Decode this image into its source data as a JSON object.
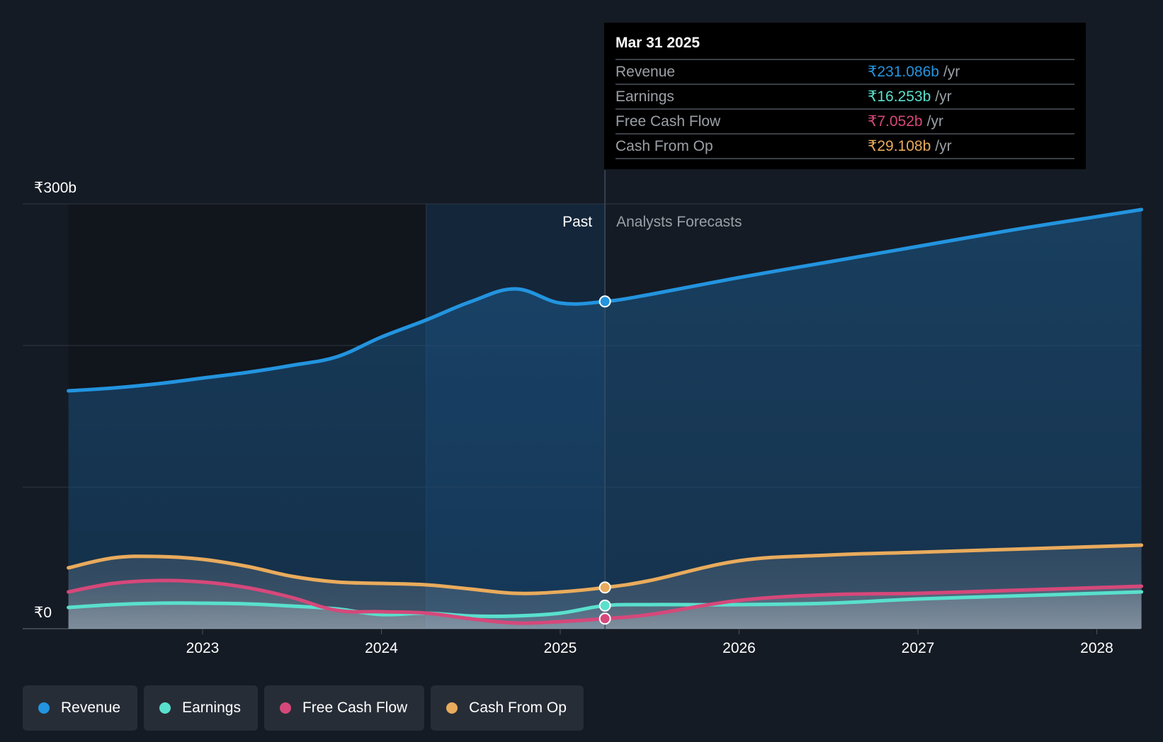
{
  "chart_data": {
    "type": "area",
    "y_axis": {
      "top_label": "₹300b",
      "bottom_label": "₹0",
      "ylim": [
        0,
        300
      ],
      "gridlines": [
        0,
        100,
        200,
        300
      ]
    },
    "x_axis": {
      "ticks": [
        "2023",
        "2024",
        "2025",
        "2026",
        "2027",
        "2028"
      ],
      "xlim": [
        2022.25,
        2028.25
      ]
    },
    "divider": {
      "x": 2025.25,
      "past_label": "Past",
      "forecast_label": "Analysts Forecasts",
      "highlight_start": 2024.25
    },
    "series": [
      {
        "name": "Revenue",
        "color": "#2394df",
        "points": [
          [
            2022.25,
            168
          ],
          [
            2022.5,
            170
          ],
          [
            2022.75,
            173
          ],
          [
            2023.0,
            177
          ],
          [
            2023.25,
            181
          ],
          [
            2023.5,
            186
          ],
          [
            2023.75,
            192
          ],
          [
            2024.0,
            206
          ],
          [
            2024.25,
            218
          ],
          [
            2024.5,
            231
          ],
          [
            2024.75,
            240
          ],
          [
            2025.0,
            230
          ],
          [
            2025.25,
            231.1
          ],
          [
            2025.5,
            236
          ],
          [
            2026.0,
            248
          ],
          [
            2026.5,
            259
          ],
          [
            2027.0,
            270
          ],
          [
            2027.5,
            281
          ],
          [
            2028.0,
            291
          ],
          [
            2028.25,
            296
          ]
        ]
      },
      {
        "name": "Earnings",
        "color": "#59e0cd",
        "points": [
          [
            2022.25,
            15
          ],
          [
            2022.5,
            17
          ],
          [
            2022.75,
            18
          ],
          [
            2023.0,
            18
          ],
          [
            2023.25,
            17.5
          ],
          [
            2023.5,
            16
          ],
          [
            2023.75,
            14
          ],
          [
            2024.0,
            10
          ],
          [
            2024.25,
            11
          ],
          [
            2024.5,
            9
          ],
          [
            2024.75,
            9
          ],
          [
            2025.0,
            11
          ],
          [
            2025.25,
            16.3
          ],
          [
            2025.5,
            17
          ],
          [
            2026.0,
            17
          ],
          [
            2026.5,
            18
          ],
          [
            2027.0,
            21
          ],
          [
            2027.5,
            23
          ],
          [
            2028.0,
            25
          ],
          [
            2028.25,
            26
          ]
        ]
      },
      {
        "name": "Free Cash Flow",
        "color": "#d6487a",
        "points": [
          [
            2022.25,
            26
          ],
          [
            2022.5,
            32
          ],
          [
            2022.75,
            34
          ],
          [
            2023.0,
            33
          ],
          [
            2023.25,
            29
          ],
          [
            2023.5,
            22
          ],
          [
            2023.75,
            13
          ],
          [
            2024.0,
            12
          ],
          [
            2024.25,
            11
          ],
          [
            2024.5,
            7
          ],
          [
            2024.75,
            4
          ],
          [
            2025.0,
            5
          ],
          [
            2025.25,
            7.1
          ],
          [
            2025.5,
            10
          ],
          [
            2026.0,
            20
          ],
          [
            2026.5,
            24
          ],
          [
            2027.0,
            25
          ],
          [
            2027.5,
            27
          ],
          [
            2028.0,
            29
          ],
          [
            2028.25,
            30
          ]
        ]
      },
      {
        "name": "Cash From Op",
        "color": "#e9ab5c",
        "points": [
          [
            2022.25,
            43
          ],
          [
            2022.5,
            50
          ],
          [
            2022.75,
            51
          ],
          [
            2023.0,
            49
          ],
          [
            2023.25,
            44
          ],
          [
            2023.5,
            37
          ],
          [
            2023.75,
            33
          ],
          [
            2024.0,
            32
          ],
          [
            2024.25,
            31
          ],
          [
            2024.5,
            28
          ],
          [
            2024.75,
            25
          ],
          [
            2025.0,
            26
          ],
          [
            2025.25,
            29.1
          ],
          [
            2025.5,
            34
          ],
          [
            2026.0,
            48
          ],
          [
            2026.5,
            52
          ],
          [
            2027.0,
            54
          ],
          [
            2027.5,
            56
          ],
          [
            2028.0,
            58
          ],
          [
            2028.25,
            59
          ]
        ]
      }
    ]
  },
  "tooltip": {
    "date": "Mar 31 2025",
    "rows": [
      {
        "label": "Revenue",
        "value": "₹231.086b",
        "unit": "/yr",
        "color": "#2394df"
      },
      {
        "label": "Earnings",
        "value": "₹16.253b",
        "unit": "/yr",
        "color": "#59e0cd"
      },
      {
        "label": "Free Cash Flow",
        "value": "₹7.052b",
        "unit": "/yr",
        "color": "#d6487a"
      },
      {
        "label": "Cash From Op",
        "value": "₹29.108b",
        "unit": "/yr",
        "color": "#e9ab5c"
      }
    ]
  },
  "legend": [
    {
      "label": "Revenue",
      "color": "#2394df"
    },
    {
      "label": "Earnings",
      "color": "#59e0cd"
    },
    {
      "label": "Free Cash Flow",
      "color": "#d6487a"
    },
    {
      "label": "Cash From Op",
      "color": "#e9ab5c"
    }
  ]
}
